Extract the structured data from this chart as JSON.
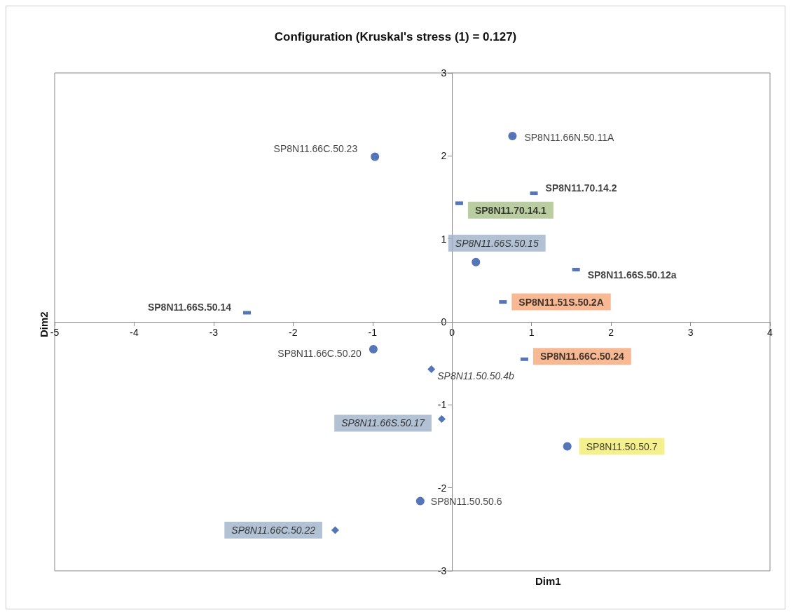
{
  "chart_data": {
    "type": "scatter",
    "title": "Configuration (Kruskal's stress (1) = 0.127)",
    "xlabel": "Dim1",
    "ylabel": "Dim2",
    "xlim": [
      -5,
      4
    ],
    "xticks": [
      -5,
      -4,
      -3,
      -2,
      -1,
      0,
      1,
      2,
      3,
      4
    ],
    "ylim": [
      -3,
      3
    ],
    "yticks": [
      -3,
      -2,
      -1,
      0,
      1,
      2,
      3
    ],
    "grid": false,
    "series": [
      {
        "color": "#2a52a8",
        "marker": "circle",
        "x": [
          0.76,
          -0.97,
          0.3,
          -0.99,
          1.45,
          -0.4
        ],
        "values": [
          2.24,
          1.99,
          0.72,
          -0.33,
          -1.5,
          -2.16
        ],
        "value_labels": [
          "SP8N11.66N.50.11A",
          "SP8N11.66C.50.23",
          "SP8N11.66S.50.15",
          "SP8N11.66C.50.20",
          "SP8N11.50.50.7",
          "SP8N11.50.50.6"
        ]
      },
      {
        "color": "#2a52a8",
        "marker": "square",
        "x": [
          1.03,
          0.09,
          1.56,
          0.64,
          -2.58,
          0.91
        ],
        "values": [
          1.55,
          1.43,
          0.63,
          0.24,
          0.11,
          -0.45
        ],
        "value_labels": [
          "SP8N11.70.14.2",
          "SP8N11.70.14.1",
          "SP8N11.66S.50.12a",
          "SP8N11.51S.50.2A",
          "SP8N11.66S.50.14",
          "SP8N11.66C.50.24"
        ]
      },
      {
        "color": "#2a52a8",
        "marker": "diamond",
        "x": [
          -0.26,
          -0.13,
          -1.47
        ],
        "values": [
          -0.57,
          -1.17,
          -2.51
        ],
        "value_labels": [
          "SP8N11.50.50.4b",
          "SP8N11.66S.50.17",
          "SP8N11.66C.50.22"
        ]
      }
    ]
  }
}
